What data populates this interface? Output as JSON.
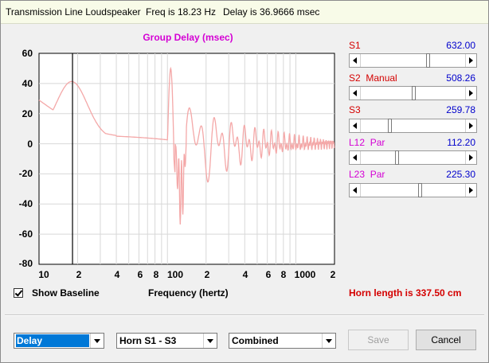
{
  "window": {
    "title": "Transmission Line Loudspeaker",
    "freq_text": "Freq is 18.23 Hz",
    "delay_text": "Delay is 36.9666 msec"
  },
  "plot": {
    "title": "Group Delay (msec)",
    "y_ticks": [
      "60",
      "40",
      "20",
      "0",
      "-20",
      "-40",
      "-60",
      "-80"
    ],
    "x_ticks": [
      "10",
      "2",
      "4",
      "6",
      "8",
      "100",
      "2",
      "4",
      "6",
      "8",
      "1000",
      "2"
    ],
    "x_label": "Frequency (hertz)",
    "cursor_freq_hz": 18.23,
    "line_color": "#f4a8a8",
    "cursor_color": "#000000"
  },
  "sliders": [
    {
      "label": "S1",
      "mode": "",
      "value": "632.00",
      "label_color": "#d40000",
      "position": 0.62
    },
    {
      "label": "S2",
      "mode": "Manual",
      "value": "508.26",
      "label_color": "#d40000",
      "position": 0.45
    },
    {
      "label": "S3",
      "mode": "",
      "value": "259.78",
      "label_color": "#d40000",
      "position": 0.23
    },
    {
      "label": "L12",
      "mode": "Par",
      "value": "112.20",
      "label_color": "#d400d4",
      "position": 0.3
    },
    {
      "label": "L23",
      "mode": "Par",
      "value": "225.30",
      "label_color": "#d400d4",
      "position": 0.56
    }
  ],
  "show_baseline": {
    "label": "Show Baseline",
    "checked": true
  },
  "horn_length": "Horn length is 337.50 cm",
  "controls": {
    "plot_type": "Delay",
    "horn_range": "Horn S1 - S3",
    "combine_mode": "Combined",
    "save_label": "Save",
    "cancel_label": "Cancel"
  }
}
